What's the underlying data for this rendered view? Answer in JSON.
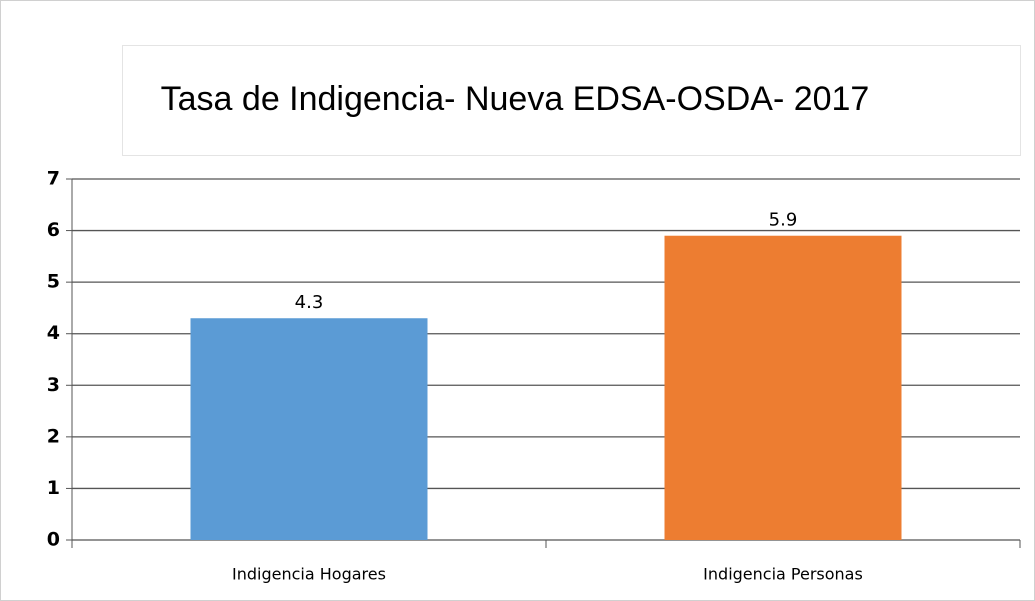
{
  "chart_data": {
    "type": "bar",
    "title": "Tasa de Indigencia- Nueva EDSA-OSDA- 2017",
    "categories": [
      "Indigencia Hogares",
      "Indigencia Personas"
    ],
    "values": [
      4.3,
      5.9
    ],
    "colors": [
      "#5b9bd5",
      "#ed7d31"
    ],
    "ylim": [
      0,
      7
    ],
    "yticks": [
      0,
      1,
      2,
      3,
      4,
      5,
      6,
      7
    ],
    "grid": true
  }
}
